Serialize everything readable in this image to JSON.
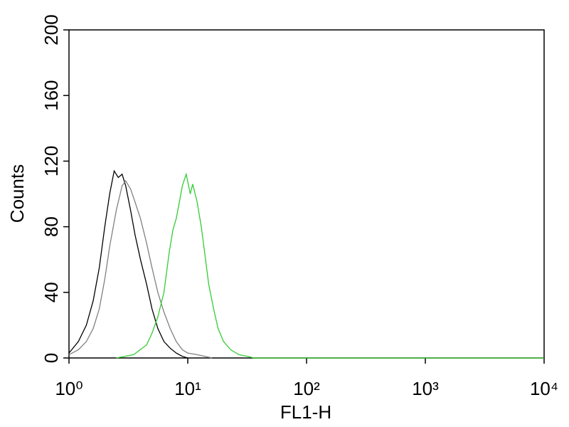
{
  "chart_data": {
    "type": "line",
    "x_label": "FL1-H",
    "y_label": "Counts",
    "xscale": "log",
    "xlim": [
      1,
      10000
    ],
    "ylim": [
      0,
      200
    ],
    "xticks": [
      {
        "value": 1,
        "label": "10⁰"
      },
      {
        "value": 10,
        "label": "10¹"
      },
      {
        "value": 100,
        "label": "10²"
      },
      {
        "value": 1000,
        "label": "10³"
      },
      {
        "value": 10000,
        "label": "10⁴"
      }
    ],
    "yticks": [
      0,
      40,
      80,
      120,
      160,
      200
    ],
    "series": [
      {
        "color": "#000000",
        "x": [
          1.0,
          1.2,
          1.4,
          1.6,
          1.8,
          2.0,
          2.2,
          2.4,
          2.6,
          2.8,
          3.0,
          3.3,
          3.6,
          4.0,
          4.5,
          5.0,
          5.6,
          6.3,
          7.1,
          8.0,
          9.0,
          10
        ],
        "values": [
          3,
          10,
          20,
          35,
          55,
          80,
          100,
          114,
          110,
          112,
          105,
          90,
          75,
          60,
          45,
          30,
          18,
          10,
          6,
          3,
          1,
          0
        ]
      },
      {
        "color": "#808080",
        "x": [
          1.0,
          1.2,
          1.4,
          1.6,
          1.8,
          2.0,
          2.2,
          2.5,
          2.8,
          3.0,
          3.3,
          3.6,
          4.0,
          4.5,
          5.0,
          5.6,
          6.3,
          7.1,
          8.0,
          9.0,
          10,
          12,
          14,
          16
        ],
        "values": [
          2,
          5,
          10,
          18,
          30,
          48,
          68,
          90,
          105,
          108,
          103,
          95,
          85,
          70,
          55,
          40,
          28,
          18,
          10,
          5,
          3,
          2,
          1,
          0
        ]
      },
      {
        "color": "#33cc33",
        "x": [
          2.5,
          3.5,
          4.5,
          5.0,
          5.6,
          6.3,
          7.0,
          7.5,
          8.0,
          8.5,
          9.0,
          9.7,
          10.5,
          11.0,
          12.0,
          13.0,
          14.0,
          15.0,
          16.5,
          18.0,
          20,
          23,
          27,
          32,
          36,
          10000
        ],
        "values": [
          0,
          2,
          8,
          15,
          25,
          40,
          65,
          78,
          85,
          95,
          105,
          112,
          100,
          106,
          95,
          80,
          62,
          45,
          30,
          18,
          10,
          5,
          2,
          1,
          0,
          0
        ]
      }
    ]
  }
}
